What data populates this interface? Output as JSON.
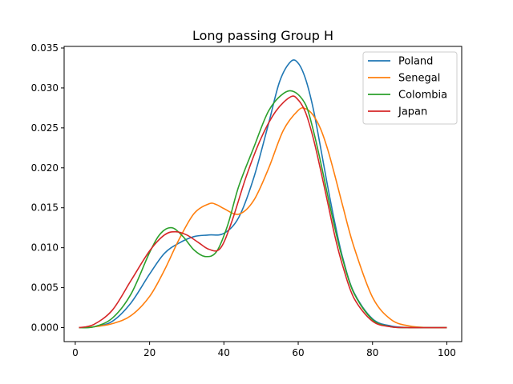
{
  "chart_data": {
    "type": "line",
    "title": "Long passing Group H",
    "xlabel": "",
    "ylabel": "",
    "xlim": [
      -3,
      104
    ],
    "ylim": [
      -0.00175,
      0.0352
    ],
    "xticks": [
      0,
      20,
      40,
      60,
      80,
      100
    ],
    "yticks": [
      "0.000",
      "0.005",
      "0.010",
      "0.015",
      "0.020",
      "0.025",
      "0.030",
      "0.035"
    ],
    "grid": false,
    "legend_position": "top-right",
    "series": [
      {
        "name": "Poland",
        "color": "#1f77b4",
        "x": [
          1,
          5,
          10,
          15,
          20,
          24,
          28,
          32,
          36,
          40,
          44,
          48,
          52,
          55,
          58,
          60,
          62,
          64,
          66,
          68,
          70,
          72,
          75,
          80,
          85,
          90,
          95,
          100
        ],
        "y": [
          0.0,
          0.0001,
          0.0008,
          0.0031,
          0.0067,
          0.0093,
          0.0106,
          0.0114,
          0.0116,
          0.0118,
          0.0138,
          0.0187,
          0.0255,
          0.0308,
          0.0333,
          0.0331,
          0.0311,
          0.0275,
          0.0226,
          0.0175,
          0.0128,
          0.0087,
          0.0044,
          0.0011,
          0.0002,
          0.0,
          0.0,
          0.0
        ]
      },
      {
        "name": "Senegal",
        "color": "#ff7f0e",
        "x": [
          1,
          5,
          10,
          15,
          20,
          24,
          28,
          32,
          36,
          38,
          40,
          44,
          48,
          52,
          56,
          60,
          62,
          64,
          66,
          68,
          70,
          72,
          75,
          80,
          85,
          90,
          95,
          100
        ],
        "y": [
          0.0,
          0.0001,
          0.0005,
          0.0015,
          0.0039,
          0.0072,
          0.0111,
          0.0143,
          0.0155,
          0.0154,
          0.0149,
          0.0142,
          0.0159,
          0.0199,
          0.0247,
          0.0272,
          0.0274,
          0.0266,
          0.0249,
          0.0222,
          0.0188,
          0.0152,
          0.0101,
          0.0038,
          0.001,
          0.0002,
          0.0,
          0.0
        ]
      },
      {
        "name": "Colombia",
        "color": "#2ca02c",
        "x": [
          1,
          5,
          10,
          15,
          20,
          23,
          26,
          29,
          32,
          35,
          38,
          41,
          44,
          48,
          52,
          56,
          59,
          62,
          64,
          66,
          68,
          70,
          72,
          75,
          80,
          85,
          90,
          95,
          100
        ],
        "y": [
          0.0,
          0.0001,
          0.0012,
          0.0042,
          0.0094,
          0.0118,
          0.0125,
          0.0114,
          0.0097,
          0.0089,
          0.0095,
          0.0128,
          0.0177,
          0.0225,
          0.0271,
          0.0293,
          0.0295,
          0.0279,
          0.0248,
          0.0208,
          0.0164,
          0.0122,
          0.0085,
          0.0043,
          0.001,
          0.0001,
          0.0,
          0.0,
          0.0
        ]
      },
      {
        "name": "Japan",
        "color": "#d62728",
        "x": [
          1,
          5,
          10,
          15,
          20,
          24,
          27,
          30,
          33,
          36,
          39,
          42,
          46,
          50,
          54,
          58,
          60,
          62,
          64,
          66,
          68,
          70,
          72,
          75,
          80,
          85,
          90,
          95,
          100
        ],
        "y": [
          0.0,
          0.0004,
          0.0022,
          0.0059,
          0.0096,
          0.0116,
          0.012,
          0.0116,
          0.0107,
          0.0098,
          0.0099,
          0.0131,
          0.0189,
          0.0237,
          0.0271,
          0.0289,
          0.0285,
          0.0269,
          0.0238,
          0.0198,
          0.0155,
          0.0112,
          0.0077,
          0.0037,
          0.0008,
          0.0001,
          0.0,
          0.0,
          0.0
        ]
      }
    ]
  }
}
